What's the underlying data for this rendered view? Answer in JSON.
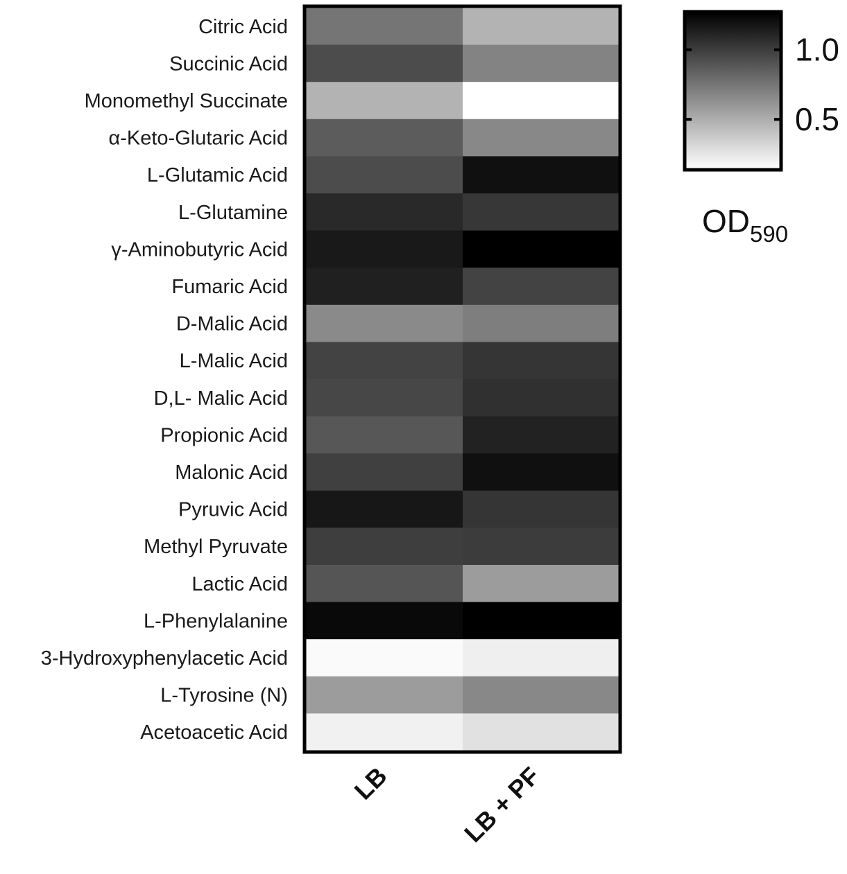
{
  "chart_data": {
    "type": "heatmap",
    "rows": [
      "Citric Acid",
      "Succinic Acid",
      "Monomethyl Succinate",
      "α-Keto-Glutaric Acid",
      "L-Glutamic Acid",
      "L-Glutamine",
      "γ-Aminobutyric Acid",
      "Fumaric Acid",
      "D-Malic Acid",
      "L-Malic Acid",
      "D,L- Malic Acid",
      "Propionic Acid",
      "Malonic Acid",
      "Pyruvic Acid",
      "Methyl Pyruvate",
      "Lactic Acid",
      "L-Phenylalanine",
      "3-Hydroxyphenylacetic Acid",
      "L-Tyrosine (N)",
      "Acetoacetic Acid"
    ],
    "columns": [
      "LB",
      "LB + PF"
    ],
    "values": [
      [
        0.75,
        0.48
      ],
      [
        0.93,
        0.69
      ],
      [
        0.48,
        0.15
      ],
      [
        0.86,
        0.67
      ],
      [
        0.93,
        1.19
      ],
      [
        1.08,
        1.02
      ],
      [
        1.15,
        1.26
      ],
      [
        1.12,
        0.97
      ],
      [
        0.66,
        0.71
      ],
      [
        0.97,
        1.03
      ],
      [
        0.95,
        1.05
      ],
      [
        0.88,
        1.11
      ],
      [
        0.98,
        1.19
      ],
      [
        1.16,
        1.03
      ],
      [
        0.99,
        1.0
      ],
      [
        0.89,
        0.58
      ],
      [
        1.22,
        1.26
      ],
      [
        0.17,
        0.22
      ],
      [
        0.58,
        0.67
      ],
      [
        0.21,
        0.28
      ]
    ],
    "colorbar": {
      "label_main": "OD",
      "label_sub": "590",
      "range": [
        0.15,
        1.26
      ],
      "ticks": [
        "1.0",
        "0.5"
      ],
      "tick_values": [
        1.0,
        0.5
      ],
      "low_color": "#ffffff",
      "high_color": "#000000"
    }
  }
}
